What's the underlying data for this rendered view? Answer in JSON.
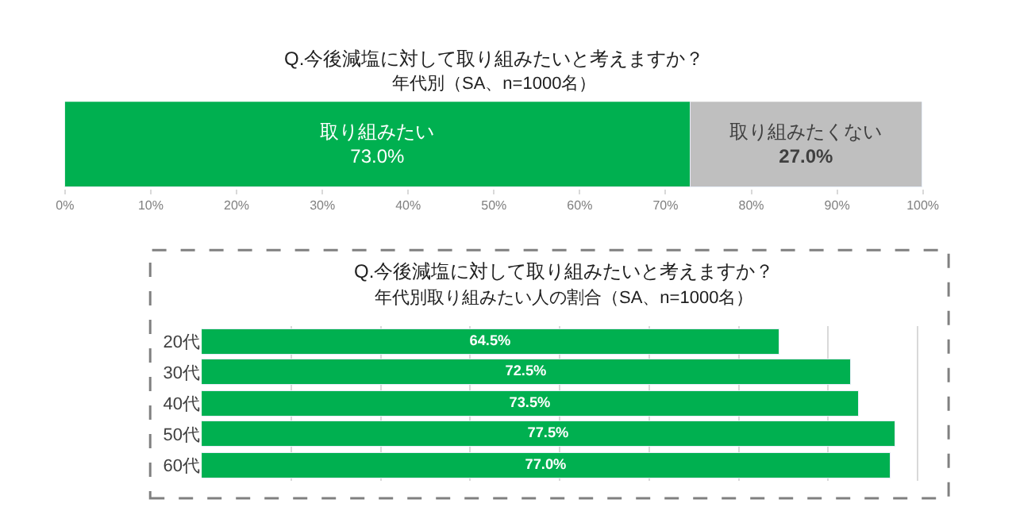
{
  "chart_data": [
    {
      "type": "bar",
      "orientation": "horizontal",
      "stacked": true,
      "title": "Q.今後減塩に対して取り組みたいと考えますか？",
      "subtitle": "年代別（SA、n=1000名）",
      "categories": [
        null
      ],
      "series": [
        {
          "name": "取り組みたい",
          "color": "#00b050",
          "values": [
            73.0
          ],
          "value_labels": [
            "73.0%"
          ]
        },
        {
          "name": "取り組みたくない",
          "color": "#bfbfbf",
          "values": [
            27.0
          ],
          "value_labels": [
            "27.0%"
          ]
        }
      ],
      "xlim": [
        0,
        100
      ],
      "xticks": [
        {
          "value": 0,
          "label": "0%"
        },
        {
          "value": 10,
          "label": "10%"
        },
        {
          "value": 20,
          "label": "20%"
        },
        {
          "value": 30,
          "label": "30%"
        },
        {
          "value": 40,
          "label": "40%"
        },
        {
          "value": 50,
          "label": "50%"
        },
        {
          "value": 60,
          "label": "60%"
        },
        {
          "value": 70,
          "label": "70%"
        },
        {
          "value": 80,
          "label": "80%"
        },
        {
          "value": 90,
          "label": "90%"
        },
        {
          "value": 100,
          "label": "100%"
        }
      ],
      "grid": false,
      "tick_labels": "x"
    },
    {
      "type": "bar",
      "orientation": "horizontal",
      "title": "Q.今後減塩に対して取り組みたいと考えますか？",
      "subtitle": "年代別取り組みたい人の割合（SA、n=1000名）",
      "categories": [
        "20代",
        "30代",
        "40代",
        "50代",
        "60代"
      ],
      "values": [
        64.5,
        72.5,
        73.5,
        77.5,
        77.0
      ],
      "value_labels": [
        "64.5%",
        "72.5%",
        "73.5%",
        "77.5%",
        "77.0%"
      ],
      "color": "#00b050",
      "grid": "x",
      "tick_labels": "y"
    }
  ]
}
